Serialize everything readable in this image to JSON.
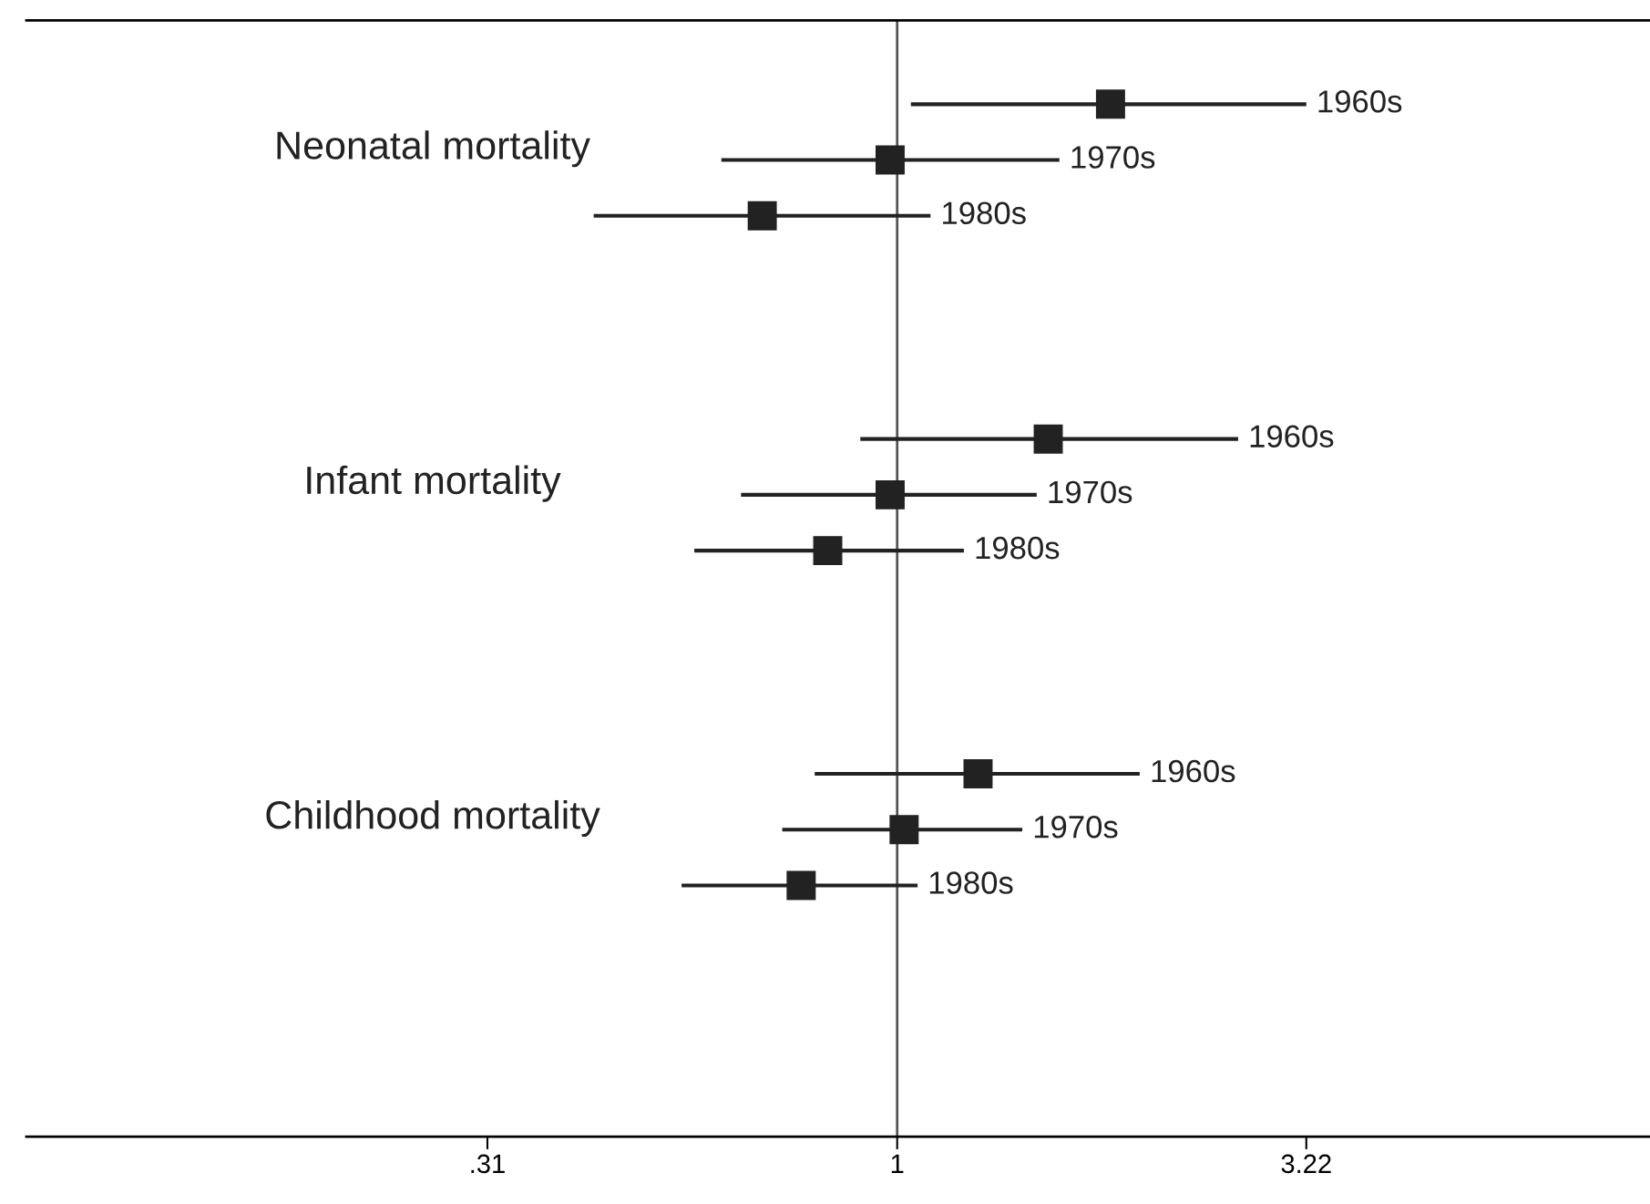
{
  "chart_data": {
    "type": "scatter",
    "orientation": "horizontal",
    "categories": [
      null,
      "1960s",
      "1970s",
      "1980s",
      null,
      null,
      null,
      "1960s",
      "1970s",
      "1980s",
      null,
      null,
      null,
      "1960s",
      "1970s",
      "1980s",
      null,
      null,
      null,
      null
    ],
    "values": [
      null,
      1.84,
      0.98,
      0.68,
      null,
      null,
      null,
      1.54,
      0.98,
      0.82,
      null,
      null,
      null,
      1.26,
      1.02,
      0.76,
      null,
      null,
      null,
      null
    ],
    "errors": [
      null,
      [
        1.04,
        3.22
      ],
      [
        0.605,
        1.59
      ],
      [
        0.42,
        1.1
      ],
      null,
      null,
      null,
      [
        0.9,
        2.65
      ],
      [
        0.64,
        1.49
      ],
      [
        0.56,
        1.21
      ],
      null,
      null,
      null,
      [
        0.79,
        2.0
      ],
      [
        0.72,
        1.43
      ],
      [
        0.54,
        1.06
      ],
      null,
      null,
      null,
      null
    ],
    "color": "#222222",
    "marker": "square",
    "log": "x",
    "xlim": [
      0.083,
      8.6
    ],
    "xticks": [
      {
        "value": 0.31,
        "label": ".31"
      },
      1,
      {
        "value": 3.22,
        "label": "3.22"
      }
    ],
    "tick_labels": "x",
    "grid": false,
    "legend": false,
    "ref_lines": [
      {
        "axis": "x",
        "value": 1,
        "color": "#555555",
        "line_style": "solid"
      }
    ],
    "annotations": [
      "Neonatal mortality",
      "Infant mortality",
      "Childhood mortality"
    ]
  }
}
